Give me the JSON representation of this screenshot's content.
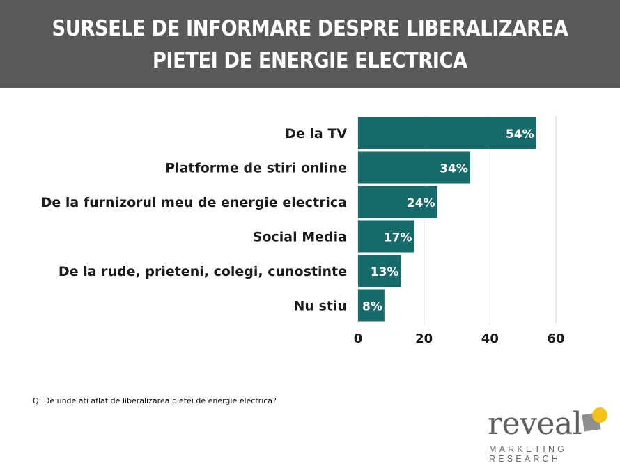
{
  "header": {
    "title_line1": "SURSELE DE INFORMARE DESPRE LIBERALIZAREA",
    "title_line2": "PIETEI DE ENERGIE ELECTRICA"
  },
  "chart_data": {
    "type": "bar",
    "orientation": "horizontal",
    "categories": [
      "De la TV",
      "Platforme de stiri online",
      "De la furnizorul meu de energie electrica",
      "Social Media",
      "De la rude, prieteni, colegi, cunostinte",
      "Nu stiu"
    ],
    "values": [
      54,
      34,
      24,
      17,
      13,
      8
    ],
    "data_labels": [
      "54%",
      "34%",
      "24%",
      "17%",
      "13%",
      "8%"
    ],
    "xlim": [
      0,
      60
    ],
    "xticks": [
      "0",
      "20",
      "40",
      "60"
    ],
    "grid": true,
    "bar_color": "#166a6a"
  },
  "footer": {
    "question": "Q: De unde ati aflat de liberalizarea pietei de energie electrica?"
  },
  "logo": {
    "word": "reveal",
    "line1": "MARKETING",
    "line2": "RESEARCH",
    "accent_color": "#f2c21a"
  }
}
